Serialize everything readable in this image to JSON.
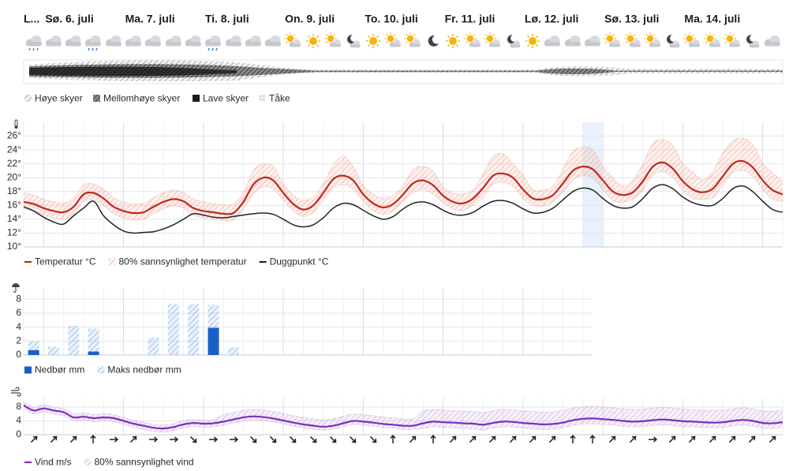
{
  "days": [
    "L...",
    "Sø. 6. juli",
    "Ma. 7. juli",
    "Ti. 8. juli",
    "On. 9. juli",
    "To. 10. juli",
    "Fr. 11. juli",
    "Lø. 12. juli",
    "Sø. 13. juli",
    "Ma. 14. juli"
  ],
  "cloud_legend": [
    "Høye skyer",
    "Mellomhøye skyer",
    "Lave skyer",
    "Tåke"
  ],
  "chart_data": [
    {
      "type": "line",
      "ylim": [
        10,
        28
      ],
      "yticks": [
        {
          "value": 10,
          "label": "10°"
        },
        {
          "value": 12,
          "label": "12°"
        },
        {
          "value": 14,
          "label": "14°"
        },
        {
          "value": 16,
          "label": "16°"
        },
        {
          "value": 18,
          "label": "18°"
        },
        {
          "value": 20,
          "label": "20°"
        },
        {
          "value": 22,
          "label": "22°"
        },
        {
          "value": 24,
          "label": "24°"
        },
        {
          "value": 26,
          "label": "26°"
        }
      ],
      "grid": true,
      "series": [
        {
          "name": "Temperatur °C",
          "color": "#c4271b",
          "values": [
            16.5,
            16.2,
            15.6,
            15.2,
            15.0,
            15.8,
            17.6,
            17.8,
            17.0,
            15.8,
            15.2,
            14.9,
            15.0,
            15.8,
            16.5,
            16.9,
            16.6,
            15.6,
            15.2,
            15.0,
            14.8,
            14.9,
            16.5,
            19.0,
            20.0,
            19.6,
            17.8,
            16.2,
            15.4,
            16.0,
            17.8,
            19.8,
            20.3,
            19.6,
            17.6,
            16.3,
            15.7,
            16.2,
            17.6,
            19.2,
            19.6,
            18.9,
            17.4,
            16.5,
            16.3,
            17.0,
            18.5,
            20.3,
            20.6,
            20.0,
            18.3,
            17.0,
            16.9,
            17.5,
            19.2,
            21.0,
            21.6,
            21.2,
            19.6,
            18.0,
            17.5,
            17.9,
            19.5,
            21.6,
            22.2,
            21.3,
            19.5,
            18.3,
            17.9,
            18.4,
            20.2,
            22.0,
            22.4,
            21.5,
            19.6,
            18.2,
            17.6
          ]
        },
        {
          "name": "80% sannsynlighet temperatur",
          "color": "#f2a494",
          "low": [
            15.5,
            15.2,
            14.6,
            14.2,
            14.0,
            14.8,
            16.6,
            16.8,
            16.0,
            14.8,
            14.2,
            13.9,
            14.0,
            14.8,
            15.5,
            15.9,
            15.6,
            14.6,
            14.2,
            14.0,
            13.8,
            13.9,
            15.5,
            17.7,
            18.7,
            18.3,
            16.8,
            15.2,
            14.4,
            15.0,
            16.8,
            18.5,
            19.0,
            18.3,
            16.6,
            15.3,
            14.7,
            15.2,
            16.6,
            17.9,
            18.3,
            17.6,
            16.4,
            15.5,
            15.3,
            16.0,
            17.2,
            19.0,
            19.3,
            18.7,
            17.0,
            16.0,
            15.9,
            16.5,
            17.9,
            19.7,
            20.3,
            19.9,
            18.3,
            16.7,
            16.5,
            16.9,
            18.2,
            20.3,
            20.9,
            20.0,
            18.2,
            17.0,
            16.9,
            17.1,
            18.9,
            20.7,
            21.1,
            20.2,
            18.3,
            16.9,
            16.6
          ],
          "high": [
            17.8,
            17.5,
            16.9,
            16.5,
            16.3,
            17.1,
            18.9,
            19.1,
            18.3,
            17.1,
            16.5,
            16.2,
            16.3,
            17.1,
            17.8,
            18.2,
            17.9,
            16.9,
            16.5,
            16.3,
            16.1,
            16.2,
            17.8,
            21.0,
            22.0,
            21.6,
            19.1,
            17.5,
            16.7,
            17.3,
            19.1,
            21.8,
            23.1,
            21.6,
            18.9,
            17.6,
            17.0,
            17.5,
            18.9,
            21.2,
            21.6,
            20.9,
            18.7,
            17.8,
            17.6,
            18.3,
            20.5,
            23.1,
            23.4,
            22.0,
            20.3,
            18.3,
            18.2,
            18.8,
            21.2,
            23.8,
            24.4,
            24.0,
            21.6,
            20.0,
            18.8,
            19.7,
            22.0,
            24.9,
            25.5,
            24.6,
            22.0,
            20.8,
            19.7,
            20.9,
            23.5,
            25.3,
            25.7,
            24.8,
            22.1,
            20.7,
            19.4
          ]
        },
        {
          "name": "Duggpunkt °C",
          "color": "#1f2326",
          "values": [
            15.8,
            15.2,
            14.3,
            13.6,
            13.3,
            14.5,
            15.6,
            16.6,
            14.5,
            13.2,
            12.3,
            12.0,
            12.1,
            12.2,
            12.6,
            13.2,
            14.0,
            14.8,
            14.6,
            14.3,
            14.2,
            14.4,
            14.6,
            14.8,
            14.9,
            14.7,
            14.0,
            13.2,
            12.9,
            13.2,
            14.2,
            15.6,
            16.3,
            16.1,
            15.3,
            14.5,
            14.0,
            14.4,
            15.5,
            16.3,
            16.5,
            16.1,
            15.3,
            14.7,
            14.6,
            15.0,
            15.9,
            16.6,
            16.7,
            16.3,
            15.5,
            14.9,
            15.0,
            15.6,
            16.8,
            18.0,
            18.5,
            18.2,
            17.0,
            16.0,
            15.6,
            15.8,
            17.0,
            18.5,
            19.0,
            18.4,
            17.2,
            16.4,
            16.0,
            16.0,
            17.0,
            18.4,
            18.8,
            18.0,
            16.6,
            15.4,
            15.0
          ]
        }
      ]
    },
    {
      "type": "bar",
      "ylim": [
        0,
        9.5
      ],
      "yticks": [
        0,
        2,
        4,
        6,
        8
      ],
      "grid": true,
      "series": [
        {
          "name": "Nedbør mm",
          "color": "#1a5fc8",
          "values": [
            0.7,
            0,
            0,
            0.5,
            0,
            0,
            0,
            0,
            0,
            3.9,
            0,
            0,
            0,
            0,
            0,
            0,
            0,
            0,
            0,
            0,
            0,
            0,
            0,
            0,
            0,
            0,
            0,
            0
          ]
        },
        {
          "name": "Maks nedbør mm",
          "color": "#6fa3e6",
          "hatched": true,
          "values": [
            2.0,
            1.2,
            4.2,
            3.8,
            0,
            0,
            2.5,
            7.3,
            7.3,
            7.2,
            1.1,
            0,
            0,
            0,
            0,
            0,
            0,
            0,
            0,
            0,
            0,
            0,
            0,
            0,
            0,
            0,
            0,
            0
          ]
        }
      ]
    },
    {
      "type": "line",
      "ylim": [
        0,
        10.5
      ],
      "yticks": [
        0,
        4,
        8
      ],
      "grid": true,
      "series": [
        {
          "name": "Vind m/s",
          "color": "#7b2fbf",
          "values": [
            8.5,
            7.0,
            7.6,
            7.0,
            6.5,
            5.0,
            5.2,
            4.8,
            5.0,
            4.8,
            4.0,
            3.2,
            2.6,
            2.0,
            1.8,
            2.2,
            3.0,
            3.4,
            3.2,
            3.3,
            3.8,
            4.4,
            5.0,
            5.3,
            5.1,
            4.7,
            4.1,
            3.5,
            3.0,
            2.6,
            2.3,
            2.6,
            3.3,
            4.0,
            3.8,
            3.5,
            3.1,
            2.9,
            2.6,
            2.6,
            3.3,
            3.8,
            3.6,
            3.5,
            3.3,
            3.2,
            2.9,
            3.4,
            3.8,
            3.7,
            3.4,
            3.2,
            3.0,
            3.1,
            3.5,
            4.2,
            4.6,
            4.7,
            4.5,
            4.3,
            4.0,
            3.8,
            3.9,
            4.2,
            4.4,
            4.2,
            3.9,
            3.8,
            3.6,
            3.5,
            3.6,
            4.0,
            4.3,
            4.0,
            3.4,
            3.3,
            3.6
          ]
        },
        {
          "name": "80% sannsynlighet vind",
          "color": "#c9a3dd",
          "low": [
            7.5,
            6.0,
            6.6,
            6.0,
            5.5,
            4.0,
            4.2,
            3.8,
            4.0,
            3.8,
            3.0,
            2.2,
            1.6,
            1.0,
            0.8,
            1.2,
            2.0,
            2.4,
            2.2,
            2.3,
            2.8,
            3.4,
            4.0,
            4.3,
            4.1,
            3.7,
            3.1,
            2.5,
            2.0,
            1.6,
            1.3,
            1.6,
            2.3,
            3.0,
            2.8,
            2.5,
            2.1,
            1.9,
            1.6,
            1.6,
            1.8,
            2.3,
            2.1,
            2.0,
            1.8,
            1.7,
            1.4,
            1.9,
            2.3,
            2.2,
            1.9,
            1.7,
            1.5,
            1.6,
            2.0,
            2.7,
            3.1,
            3.2,
            3.0,
            2.8,
            2.5,
            2.3,
            2.4,
            2.7,
            2.9,
            2.7,
            2.4,
            2.3,
            2.1,
            2.0,
            2.1,
            2.5,
            2.8,
            2.5,
            1.9,
            1.8,
            2.1
          ],
          "high": [
            9.5,
            8.0,
            8.6,
            8.0,
            7.5,
            6.0,
            6.2,
            5.8,
            6.0,
            5.8,
            5.0,
            4.2,
            3.6,
            3.0,
            2.8,
            3.2,
            4.0,
            4.4,
            4.2,
            4.3,
            5.8,
            6.4,
            7.0,
            7.3,
            7.1,
            6.7,
            6.1,
            5.5,
            5.0,
            4.6,
            4.3,
            4.6,
            5.3,
            6.0,
            5.8,
            5.5,
            5.1,
            4.9,
            4.6,
            4.6,
            6.8,
            7.3,
            7.1,
            7.0,
            6.8,
            6.7,
            6.4,
            6.9,
            7.3,
            7.2,
            6.9,
            6.7,
            6.5,
            6.6,
            7.0,
            7.7,
            8.1,
            8.2,
            8.0,
            7.8,
            7.5,
            7.3,
            7.4,
            7.7,
            7.9,
            7.7,
            7.4,
            7.3,
            7.1,
            7.0,
            7.1,
            7.5,
            7.8,
            7.5,
            6.9,
            6.8,
            7.1
          ]
        }
      ]
    }
  ]
}
